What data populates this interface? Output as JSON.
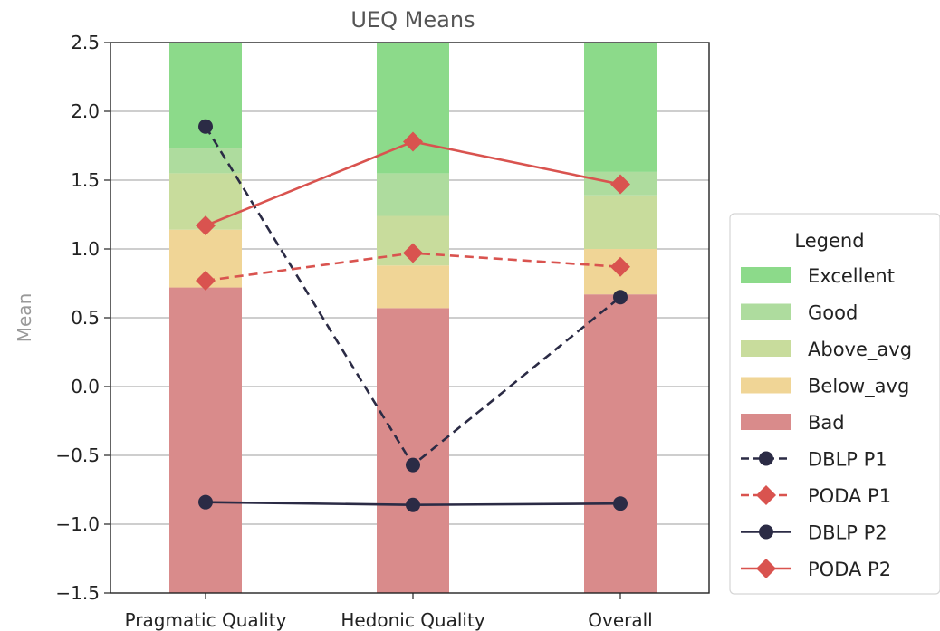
{
  "chart_data": {
    "type": "bar",
    "title": "UEQ Means",
    "xlabel": "",
    "ylabel": "Mean",
    "ylim": [
      -1.5,
      2.5
    ],
    "yticks": [
      -1.5,
      -1.0,
      -0.5,
      0.0,
      0.5,
      1.0,
      1.5,
      2.0,
      2.5
    ],
    "ytick_labels": [
      "−1.5",
      "−1.0",
      "−0.5",
      "0.0",
      "0.5",
      "1.0",
      "1.5",
      "2.0",
      "2.5"
    ],
    "grid": "horizontal",
    "categories": [
      "Pragmatic Quality",
      "Hedonic Quality",
      "Overall"
    ],
    "benchmark_bands": [
      {
        "name": "Bad",
        "color": "#d98b8b",
        "lower": [
          -1.5,
          -1.5,
          -1.5
        ],
        "upper": [
          0.72,
          0.57,
          0.67
        ]
      },
      {
        "name": "Below_avg",
        "color": "#f0d596",
        "lower": [
          0.72,
          0.57,
          0.67
        ],
        "upper": [
          1.14,
          0.88,
          1.0
        ]
      },
      {
        "name": "Above_avg",
        "color": "#c8dc9c",
        "lower": [
          1.14,
          0.88,
          1.0
        ],
        "upper": [
          1.55,
          1.24,
          1.39
        ]
      },
      {
        "name": "Good",
        "color": "#aedc9e",
        "lower": [
          1.55,
          1.24,
          1.39
        ],
        "upper": [
          1.73,
          1.55,
          1.56
        ]
      },
      {
        "name": "Excellent",
        "color": "#8cda8a",
        "lower": [
          1.73,
          1.55,
          1.56
        ],
        "upper": [
          2.5,
          2.5,
          2.5
        ]
      }
    ],
    "series": [
      {
        "name": "DBLP P1",
        "color": "#2b2b45",
        "line": "dashed",
        "marker": "circle",
        "values": [
          1.89,
          -0.57,
          0.65
        ]
      },
      {
        "name": "PODA P1",
        "color": "#d9534f",
        "line": "dashed",
        "marker": "diamond",
        "values": [
          0.77,
          0.97,
          0.87
        ]
      },
      {
        "name": "DBLP P2",
        "color": "#2b2b45",
        "line": "solid",
        "marker": "circle",
        "values": [
          -0.84,
          -0.86,
          -0.85
        ]
      },
      {
        "name": "PODA P2",
        "color": "#d9534f",
        "line": "solid",
        "marker": "diamond",
        "values": [
          1.17,
          1.78,
          1.47
        ]
      }
    ],
    "legend": {
      "title": "Legend",
      "placement": "right",
      "items": [
        "Excellent",
        "Good",
        "Above_avg",
        "Below_avg",
        "Bad",
        "DBLP P1",
        "PODA P1",
        "DBLP P2",
        "PODA P2"
      ]
    }
  }
}
